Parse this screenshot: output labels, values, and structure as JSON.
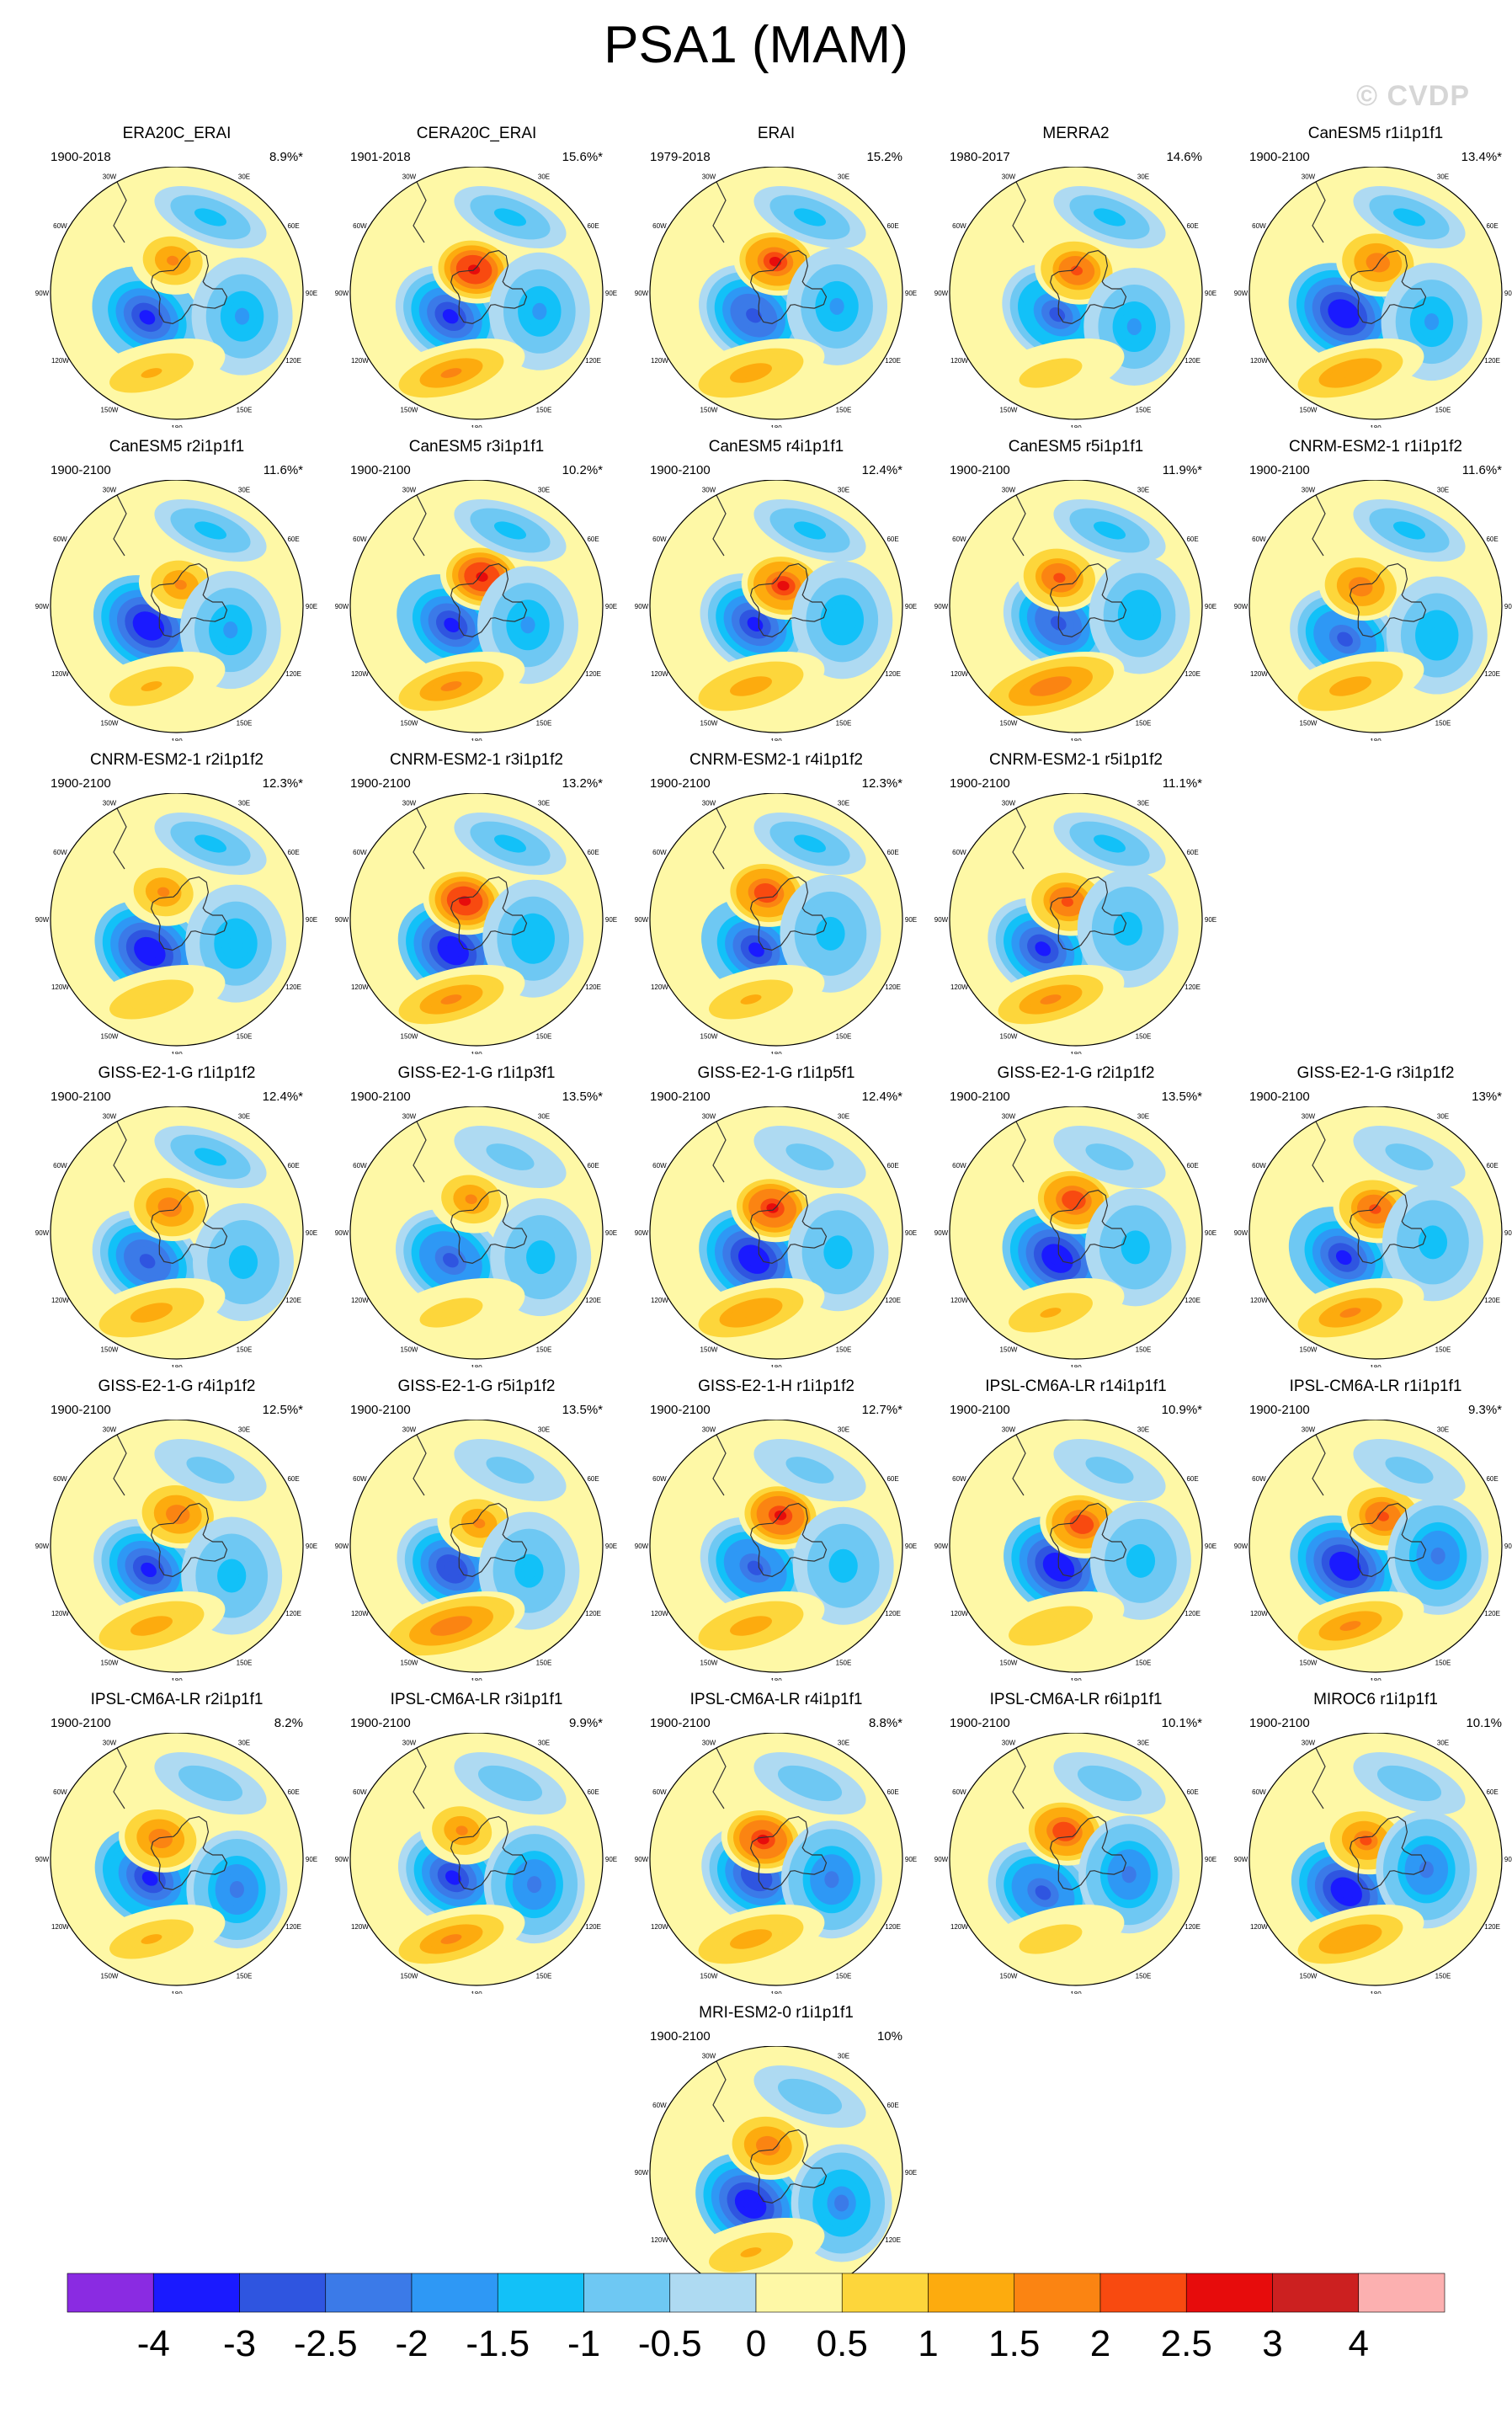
{
  "title": "PSA1 (MAM)",
  "credit": "© CVDP",
  "lon_labels": [
    "0",
    "30E",
    "60E",
    "90E",
    "120E",
    "150E",
    "180",
    "150W",
    "120W",
    "90W",
    "60W",
    "30W"
  ],
  "colorbar": {
    "labels": [
      "-4",
      "-3",
      "-2.5",
      "-2",
      "-1.5",
      "-1",
      "-0.5",
      "0",
      "0.5",
      "1",
      "1.5",
      "2",
      "2.5",
      "3",
      "4"
    ],
    "colors": [
      "#8a2be2",
      "#1a1aff",
      "#2f55e0",
      "#3b7ae8",
      "#2e98f5",
      "#12c1f8",
      "#6ec8f3",
      "#aedaf2",
      "#fef8a6",
      "#fdd63b",
      "#fdab0e",
      "#fb8412",
      "#f84a10",
      "#e70c0c",
      "#cc2020",
      "#fcb0b0"
    ]
  },
  "chart_data": {
    "type": "heatmap",
    "variable": "PSA1",
    "season": "MAM",
    "levels": [
      -4,
      -3,
      -2.5,
      -2,
      -1.5,
      -1,
      -0.5,
      0,
      0.5,
      1,
      1.5,
      2,
      2.5,
      3,
      4
    ],
    "panels": [
      {
        "name": "ERA20C_ERAI",
        "period": "1900-2018",
        "pct": "8.9%*"
      },
      {
        "name": "CERA20C_ERAI",
        "period": "1901-2018",
        "pct": "15.6%*"
      },
      {
        "name": "ERAI",
        "period": "1979-2018",
        "pct": "15.2%"
      },
      {
        "name": "MERRA2",
        "period": "1980-2017",
        "pct": "14.6%"
      },
      {
        "name": "CanESM5 r1i1p1f1",
        "period": "1900-2100",
        "pct": "13.4%*"
      },
      {
        "name": "CanESM5 r2i1p1f1",
        "period": "1900-2100",
        "pct": "11.6%*"
      },
      {
        "name": "CanESM5 r3i1p1f1",
        "period": "1900-2100",
        "pct": "10.2%*"
      },
      {
        "name": "CanESM5 r4i1p1f1",
        "period": "1900-2100",
        "pct": "12.4%*"
      },
      {
        "name": "CanESM5 r5i1p1f1",
        "period": "1900-2100",
        "pct": "11.9%*"
      },
      {
        "name": "CNRM-ESM2-1 r1i1p1f2",
        "period": "1900-2100",
        "pct": "11.6%*"
      },
      {
        "name": "CNRM-ESM2-1 r2i1p1f2",
        "period": "1900-2100",
        "pct": "12.3%*"
      },
      {
        "name": "CNRM-ESM2-1 r3i1p1f2",
        "period": "1900-2100",
        "pct": "13.2%*"
      },
      {
        "name": "CNRM-ESM2-1 r4i1p1f2",
        "period": "1900-2100",
        "pct": "12.3%*"
      },
      {
        "name": "CNRM-ESM2-1 r5i1p1f2",
        "period": "1900-2100",
        "pct": "11.1%*"
      },
      {
        "name": "GISS-E2-1-G r1i1p1f2",
        "period": "1900-2100",
        "pct": "12.4%*"
      },
      {
        "name": "GISS-E2-1-G r1i1p3f1",
        "period": "1900-2100",
        "pct": "13.5%*"
      },
      {
        "name": "GISS-E2-1-G r1i1p5f1",
        "period": "1900-2100",
        "pct": "12.4%*"
      },
      {
        "name": "GISS-E2-1-G r2i1p1f2",
        "period": "1900-2100",
        "pct": "13.5%*"
      },
      {
        "name": "GISS-E2-1-G r3i1p1f2",
        "period": "1900-2100",
        "pct": "13%*"
      },
      {
        "name": "GISS-E2-1-G r4i1p1f2",
        "period": "1900-2100",
        "pct": "12.5%*"
      },
      {
        "name": "GISS-E2-1-G r5i1p1f2",
        "period": "1900-2100",
        "pct": "13.5%*"
      },
      {
        "name": "GISS-E2-1-H r1i1p1f2",
        "period": "1900-2100",
        "pct": "12.7%*"
      },
      {
        "name": "IPSL-CM6A-LR r14i1p1f1",
        "period": "1900-2100",
        "pct": "10.9%*"
      },
      {
        "name": "IPSL-CM6A-LR r1i1p1f1",
        "period": "1900-2100",
        "pct": "9.3%*"
      },
      {
        "name": "IPSL-CM6A-LR r2i1p1f1",
        "period": "1900-2100",
        "pct": "8.2%"
      },
      {
        "name": "IPSL-CM6A-LR r3i1p1f1",
        "period": "1900-2100",
        "pct": "9.9%*"
      },
      {
        "name": "IPSL-CM6A-LR r4i1p1f1",
        "period": "1900-2100",
        "pct": "8.8%*"
      },
      {
        "name": "IPSL-CM6A-LR r6i1p1f1",
        "period": "1900-2100",
        "pct": "10.1%*"
      },
      {
        "name": "MIROC6 r1i1p1f1",
        "period": "1900-2100",
        "pct": "10.1%"
      },
      {
        "name": "MRI-ESM2-0 r1i1p1f1",
        "period": "1900-2100",
        "pct": "10%"
      }
    ]
  }
}
